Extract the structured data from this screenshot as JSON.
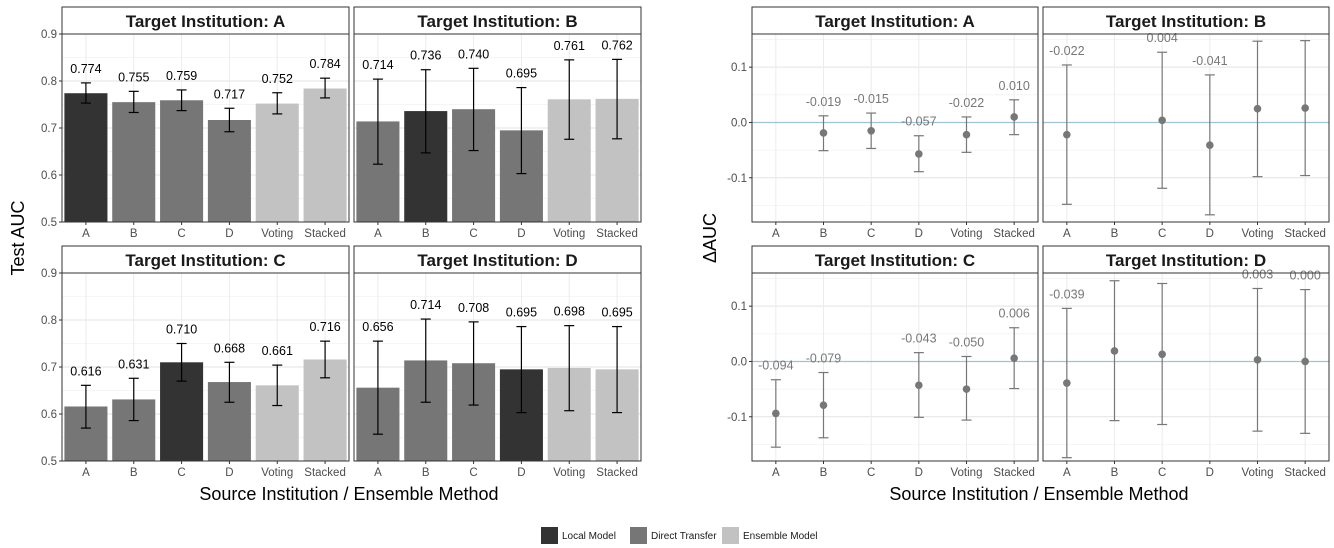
{
  "chart_data": [
    {
      "type": "bar",
      "ylabel": "Test AUC",
      "xlabel": "Source Institution / Ensemble Method",
      "ylim": [
        0.5,
        0.9
      ],
      "yticks": [
        "0.5",
        "0.6",
        "0.7",
        "0.8",
        "0.9"
      ],
      "categories": [
        "A",
        "B",
        "C",
        "D",
        "Voting",
        "Stacked"
      ],
      "colors": {
        "Local Model": "#333333",
        "Direct Transfer": "#767676",
        "Ensemble Model": "#c2c2c2"
      },
      "panels": [
        {
          "title": "Target Institution: A",
          "values": [
            0.774,
            0.755,
            0.759,
            0.717,
            0.752,
            0.784
          ],
          "labels": [
            "0.774",
            "0.755",
            "0.759",
            "0.717",
            "0.752",
            "0.784"
          ],
          "err_low": [
            0.753,
            0.733,
            0.737,
            0.692,
            0.73,
            0.764
          ],
          "err_high": [
            0.796,
            0.778,
            0.781,
            0.742,
            0.775,
            0.806
          ],
          "groups": [
            "Local Model",
            "Direct Transfer",
            "Direct Transfer",
            "Direct Transfer",
            "Ensemble Model",
            "Ensemble Model"
          ]
        },
        {
          "title": "Target Institution: B",
          "values": [
            0.714,
            0.736,
            0.74,
            0.695,
            0.761,
            0.762
          ],
          "labels": [
            "0.714",
            "0.736",
            "0.740",
            "0.695",
            "0.761",
            "0.762"
          ],
          "err_low": [
            0.623,
            0.647,
            0.652,
            0.603,
            0.676,
            0.677
          ],
          "err_high": [
            0.804,
            0.824,
            0.827,
            0.786,
            0.845,
            0.846
          ],
          "groups": [
            "Direct Transfer",
            "Local Model",
            "Direct Transfer",
            "Direct Transfer",
            "Ensemble Model",
            "Ensemble Model"
          ]
        },
        {
          "title": "Target Institution: C",
          "values": [
            0.616,
            0.631,
            0.71,
            0.668,
            0.661,
            0.716
          ],
          "labels": [
            "0.616",
            "0.631",
            "0.710",
            "0.668",
            "0.661",
            "0.716"
          ],
          "err_low": [
            0.57,
            0.586,
            0.67,
            0.625,
            0.618,
            0.677
          ],
          "err_high": [
            0.661,
            0.676,
            0.75,
            0.71,
            0.704,
            0.755
          ],
          "groups": [
            "Direct Transfer",
            "Direct Transfer",
            "Local Model",
            "Direct Transfer",
            "Ensemble Model",
            "Ensemble Model"
          ]
        },
        {
          "title": "Target Institution: D",
          "values": [
            0.656,
            0.714,
            0.708,
            0.695,
            0.698,
            0.695
          ],
          "labels": [
            "0.656",
            "0.714",
            "0.708",
            "0.695",
            "0.698",
            "0.695"
          ],
          "err_low": [
            0.557,
            0.625,
            0.619,
            0.603,
            0.607,
            0.603
          ],
          "err_high": [
            0.755,
            0.802,
            0.796,
            0.786,
            0.788,
            0.786
          ],
          "groups": [
            "Direct Transfer",
            "Direct Transfer",
            "Direct Transfer",
            "Local Model",
            "Ensemble Model",
            "Ensemble Model"
          ]
        }
      ]
    },
    {
      "type": "scatter",
      "ylabel": "ΔAUC",
      "xlabel": "Source Institution / Ensemble Method",
      "ylim": [
        -0.18,
        0.16
      ],
      "yticks": [
        "-0.1",
        "0.0",
        "0.1"
      ],
      "yticks_values": [
        -0.1,
        0.0,
        0.1
      ],
      "categories": [
        "A",
        "B",
        "C",
        "D",
        "Voting",
        "Stacked"
      ],
      "reference_line": 0.0,
      "point_color": "#777777",
      "reference_color": "#9fc3d1",
      "panels": [
        {
          "title": "Target Institution: A",
          "values": [
            null,
            -0.019,
            -0.015,
            -0.057,
            -0.022,
            0.01
          ],
          "labels": [
            "",
            "-0.019",
            "-0.015",
            "-0.057",
            "-0.022",
            "0.010"
          ],
          "err_low": [
            null,
            -0.051,
            -0.047,
            -0.089,
            -0.054,
            -0.022
          ],
          "err_high": [
            null,
            0.012,
            0.017,
            -0.024,
            0.01,
            0.041
          ]
        },
        {
          "title": "Target Institution: B",
          "values": [
            -0.022,
            null,
            0.004,
            -0.041,
            0.025,
            0.026
          ],
          "labels": [
            "-0.022",
            "",
            "0.004",
            "-0.041",
            "",
            ""
          ],
          "err_low": [
            -0.148,
            null,
            -0.119,
            -0.167,
            -0.098,
            -0.096
          ],
          "err_high": [
            0.104,
            null,
            0.127,
            0.086,
            0.147,
            0.148
          ]
        },
        {
          "title": "Target Institution: C",
          "values": [
            -0.094,
            -0.079,
            null,
            -0.043,
            -0.05,
            0.006
          ],
          "labels": [
            "-0.094",
            "-0.079",
            "",
            "-0.043",
            "-0.050",
            "0.006"
          ],
          "err_low": [
            -0.155,
            -0.138,
            null,
            -0.101,
            -0.106,
            -0.049
          ],
          "err_high": [
            -0.033,
            -0.02,
            null,
            0.016,
            0.009,
            0.061
          ]
        },
        {
          "title": "Target Institution: D",
          "values": [
            -0.039,
            0.019,
            0.013,
            null,
            0.003,
            0.0
          ],
          "labels": [
            "-0.039",
            "",
            "",
            "",
            "0.003",
            "0.000"
          ],
          "err_low": [
            -0.174,
            -0.107,
            -0.114,
            null,
            -0.126,
            -0.13
          ],
          "err_high": [
            0.096,
            0.146,
            0.141,
            null,
            0.132,
            0.13
          ]
        }
      ]
    }
  ],
  "legend": [
    {
      "label": "Local Model",
      "color": "#333333"
    },
    {
      "label": "Direct Transfer",
      "color": "#767676"
    },
    {
      "label": "Ensemble Model",
      "color": "#c2c2c2"
    }
  ]
}
